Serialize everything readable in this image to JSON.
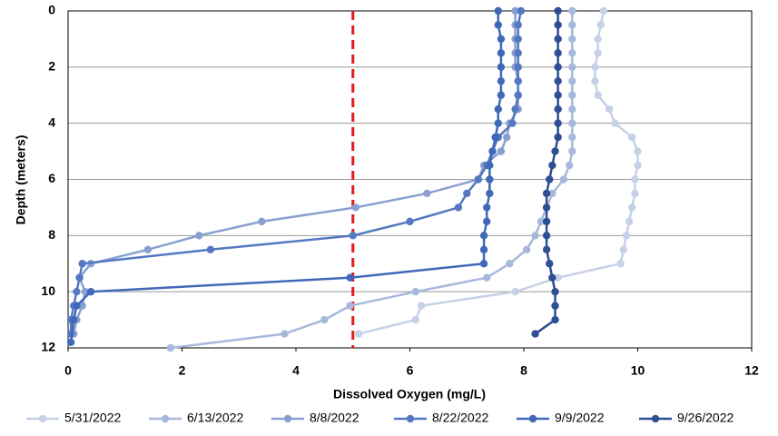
{
  "chart_data": {
    "type": "line",
    "xlabel": "Dissolved Oxygen (mg/L)",
    "ylabel": "Depth (meters)",
    "xlim": [
      0,
      12
    ],
    "xticks": [
      0,
      2,
      4,
      6,
      8,
      10,
      12
    ],
    "ylim": [
      0,
      12
    ],
    "yticks": [
      0,
      2,
      4,
      6,
      8,
      10,
      12
    ],
    "y_inverted": true,
    "grid": true,
    "legend": "bottom",
    "reference_line": {
      "x": 5,
      "color": "#e31a1c"
    },
    "series": [
      {
        "name": "5/31/2022",
        "color": "#c6d1e8",
        "x": [
          9.4,
          9.35,
          9.3,
          9.3,
          9.25,
          9.25,
          9.3,
          9.5,
          9.6,
          9.9,
          10.0,
          10.0,
          9.95,
          9.95,
          9.9,
          9.85,
          9.8,
          9.75,
          9.7,
          8.6,
          7.85,
          6.2,
          6.1,
          5.1
        ],
        "y": [
          0,
          0.5,
          1,
          1.5,
          2,
          2.5,
          3,
          3.5,
          4,
          4.5,
          5,
          5.5,
          6,
          6.5,
          7,
          7.5,
          8,
          8.5,
          9,
          9.5,
          10,
          10.5,
          11,
          11.5
        ]
      },
      {
        "name": "6/13/2022",
        "color": "#a8b8dc",
        "x": [
          8.85,
          8.85,
          8.85,
          8.85,
          8.85,
          8.85,
          8.85,
          8.85,
          8.85,
          8.85,
          8.85,
          8.8,
          8.7,
          8.5,
          8.4,
          8.3,
          8.2,
          8.05,
          7.75,
          7.35,
          6.1,
          4.95,
          4.5,
          3.8,
          1.8
        ],
        "y": [
          0,
          0.5,
          1,
          1.5,
          2,
          2.5,
          3,
          3.5,
          4,
          4.5,
          5,
          5.5,
          6,
          6.5,
          7,
          7.5,
          8,
          8.5,
          9,
          9.5,
          10,
          10.5,
          11,
          11.5,
          12
        ]
      },
      {
        "name": "8/8/2022",
        "color": "#8a9fd1",
        "x": [
          7.85,
          7.85,
          7.85,
          7.85,
          7.85,
          7.9,
          7.9,
          7.9,
          7.75,
          7.7,
          7.6,
          7.3,
          7.2,
          6.3,
          5.05,
          3.4,
          2.3,
          1.4,
          0.4,
          0.2,
          0.3,
          0.25,
          0.15,
          0.1
        ],
        "y": [
          0,
          0.5,
          1,
          1.5,
          2,
          2.5,
          3,
          3.5,
          4,
          4.5,
          5,
          5.5,
          6,
          6.5,
          7,
          7.5,
          8,
          8.5,
          9,
          9.5,
          10,
          10.5,
          11,
          11.5
        ]
      },
      {
        "name": "8/22/2022",
        "color": "#5479c2",
        "x": [
          7.95,
          7.9,
          7.9,
          7.9,
          7.9,
          7.9,
          7.9,
          7.85,
          7.8,
          7.55,
          7.45,
          7.35,
          7.2,
          7.0,
          6.85,
          6.0,
          5.0,
          2.5,
          0.25,
          0.2,
          0.15,
          0.1,
          0.05,
          0.05
        ],
        "y": [
          0,
          0.5,
          1,
          1.5,
          2,
          2.5,
          3,
          3.5,
          4,
          4.5,
          5,
          5.5,
          6,
          6.5,
          7,
          7.5,
          8,
          8.5,
          9,
          9.5,
          10,
          10.5,
          11,
          11.5
        ]
      },
      {
        "name": "9/9/2022",
        "color": "#3f69b8",
        "x": [
          7.55,
          7.55,
          7.6,
          7.6,
          7.6,
          7.6,
          7.6,
          7.55,
          7.55,
          7.5,
          7.45,
          7.4,
          7.4,
          7.4,
          7.35,
          7.35,
          7.3,
          7.3,
          7.3,
          4.95,
          0.4,
          0.15,
          0.1,
          0.05
        ],
        "y": [
          0,
          0.5,
          1,
          1.5,
          2,
          2.5,
          3,
          3.5,
          4,
          4.5,
          5,
          5.5,
          6,
          6.5,
          7,
          7.5,
          8,
          8.5,
          9,
          9.5,
          10,
          10.5,
          11,
          11.8
        ]
      },
      {
        "name": "9/26/2022",
        "color": "#2e4f91",
        "x": [
          8.6,
          8.6,
          8.6,
          8.6,
          8.6,
          8.6,
          8.6,
          8.6,
          8.6,
          8.6,
          8.55,
          8.5,
          8.45,
          8.4,
          8.4,
          8.4,
          8.4,
          8.4,
          8.45,
          8.5,
          8.55,
          8.55,
          8.55,
          8.2
        ],
        "y": [
          0,
          0.5,
          1,
          1.5,
          2,
          2.5,
          3,
          3.5,
          4,
          4.5,
          5,
          5.5,
          6,
          6.5,
          7,
          7.5,
          8,
          8.5,
          9,
          9.5,
          10,
          10.5,
          11,
          11.5
        ]
      }
    ]
  }
}
